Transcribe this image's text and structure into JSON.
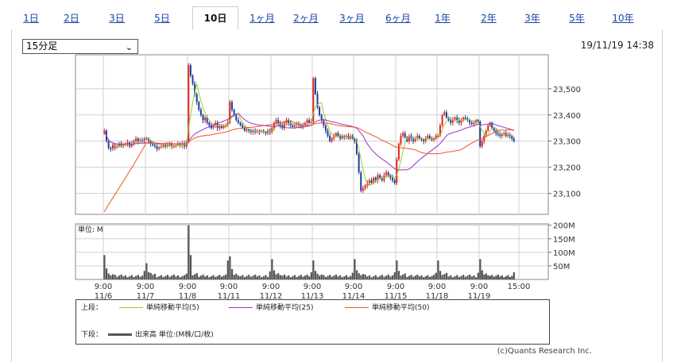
{
  "tabs": [
    {
      "label": "1日",
      "active": false
    },
    {
      "label": "2日",
      "active": false
    },
    {
      "label": "3日",
      "active": false
    },
    {
      "label": "5日",
      "active": false
    },
    {
      "label": "10日",
      "active": true
    },
    {
      "label": "1ヶ月",
      "active": false
    },
    {
      "label": "2ヶ月",
      "active": false
    },
    {
      "label": "3ヶ月",
      "active": false
    },
    {
      "label": "6ヶ月",
      "active": false
    },
    {
      "label": "1年",
      "active": false
    },
    {
      "label": "2年",
      "active": false
    },
    {
      "label": "3年",
      "active": false
    },
    {
      "label": "5年",
      "active": false
    },
    {
      "label": "10年",
      "active": false
    }
  ],
  "timeframe": {
    "selected": "15分足"
  },
  "timestamp": "19/11/19 14:38",
  "colors": {
    "up": "#e0261f",
    "down": "#1f3d99",
    "ma5": "#99cc33",
    "ma25": "#9933cc",
    "ma50": "#ee5522",
    "volume": "#555555",
    "grid": "#d0d0d0"
  },
  "chart_data": [
    {
      "type": "line",
      "panel": "price",
      "y_ticks": [
        "23,500",
        "23,400",
        "23,300",
        "23,200",
        "23,100"
      ],
      "ylim": [
        23020,
        23630
      ],
      "x_ticks": [
        {
          "time": "9:00",
          "date": "11/6"
        },
        {
          "time": "9:00",
          "date": "11/7"
        },
        {
          "time": "9:00",
          "date": "11/8"
        },
        {
          "time": "9:00",
          "date": "11/11"
        },
        {
          "time": "9:00",
          "date": "11/12"
        },
        {
          "time": "9:00",
          "date": "11/13"
        },
        {
          "time": "9:00",
          "date": "11/14"
        },
        {
          "time": "9:00",
          "date": "11/15"
        },
        {
          "time": "9:00",
          "date": "11/18"
        },
        {
          "time": "9:00",
          "date": "11/19"
        },
        {
          "time": "15:00",
          "date": ""
        }
      ],
      "close_by_session": [
        [
          23340,
          23300,
          23275,
          23270,
          23285,
          23275,
          23280,
          23290,
          23280,
          23285,
          23290,
          23295,
          23280,
          23290,
          23300,
          23310,
          23300,
          23305,
          23300,
          23310
        ],
        [
          23310,
          23300,
          23290,
          23285,
          23280,
          23270,
          23275,
          23280,
          23285,
          23280,
          23285,
          23290,
          23280,
          23280,
          23285,
          23290,
          23285,
          23290,
          23280,
          23295
        ],
        [
          23590,
          23550,
          23520,
          23480,
          23450,
          23420,
          23400,
          23380,
          23390,
          23370,
          23360,
          23350,
          23360,
          23370,
          23350,
          23360,
          23350,
          23360,
          23360,
          23370
        ],
        [
          23450,
          23420,
          23400,
          23380,
          23370,
          23360,
          23350,
          23340,
          23345,
          23340,
          23335,
          23340,
          23335,
          23340,
          23335,
          23340,
          23335,
          23330,
          23340,
          23335
        ],
        [
          23350,
          23370,
          23380,
          23370,
          23360,
          23350,
          23370,
          23380,
          23370,
          23360,
          23355,
          23360,
          23365,
          23360,
          23355,
          23360,
          23370,
          23380,
          23370,
          23375
        ],
        [
          23540,
          23480,
          23430,
          23400,
          23380,
          23360,
          23340,
          23320,
          23300,
          23310,
          23320,
          23330,
          23320,
          23310,
          23320,
          23315,
          23320,
          23310,
          23320,
          23310
        ],
        [
          23300,
          23250,
          23180,
          23110,
          23120,
          23130,
          23140,
          23150,
          23140,
          23160,
          23150,
          23170,
          23160,
          23150,
          23170,
          23180,
          23170,
          23160,
          23150,
          23140
        ],
        [
          23230,
          23290,
          23320,
          23330,
          23315,
          23300,
          23320,
          23310,
          23300,
          23310,
          23320,
          23310,
          23305,
          23300,
          23310,
          23320,
          23310,
          23305,
          23310,
          23320
        ],
        [
          23320,
          23360,
          23400,
          23410,
          23390,
          23380,
          23370,
          23380,
          23390,
          23380,
          23370,
          23380,
          23390,
          23385,
          23380,
          23370,
          23365,
          23370,
          23380,
          23375
        ],
        [
          23280,
          23300,
          23320,
          23340,
          23360,
          23370,
          23350,
          23340,
          23330,
          23325,
          23320,
          23325,
          23330,
          23320,
          23325,
          23320,
          23310,
          23300
        ]
      ],
      "series": [
        {
          "name": "単純移動平均(5)",
          "color": "#99cc33"
        },
        {
          "name": "単純移動平均(25)",
          "color": "#9933cc"
        },
        {
          "name": "単純移動平均(50)",
          "color": "#ee5522"
        }
      ]
    },
    {
      "type": "bar",
      "panel": "volume",
      "unit_label": "単位: M",
      "y_ticks": [
        "200M",
        "150M",
        "100M",
        "50M"
      ],
      "ylim": [
        0,
        205
      ],
      "session_peaks": [
        90,
        60,
        200,
        85,
        75,
        70,
        75,
        70,
        70,
        75
      ]
    }
  ],
  "legend": {
    "upper_label": "上段：",
    "lower_label": "下段：",
    "ma5": "単純移動平均(5)",
    "ma25": "単純移動平均(25)",
    "ma50": "単純移動平均(50)",
    "volume": "出来高 単位:(M株/口/枚)"
  },
  "copyright": "(c)Quants Research Inc."
}
